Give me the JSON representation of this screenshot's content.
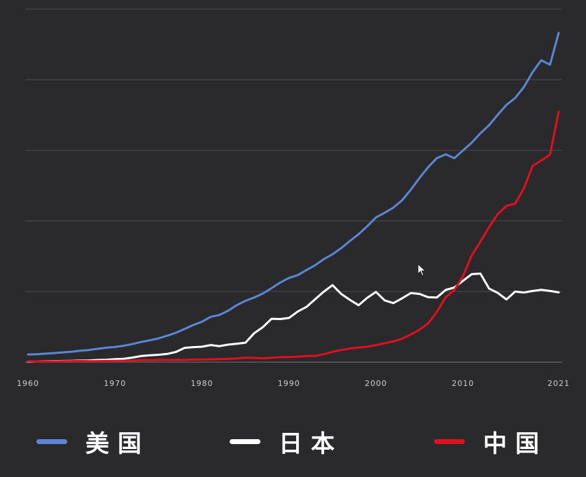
{
  "chart_data": {
    "type": "line",
    "title": "",
    "xlabel": "",
    "ylabel": "",
    "xlim": [
      1960,
      2021
    ],
    "ylim": [
      0,
      25
    ],
    "y_grid_ticks": [
      0,
      5,
      10,
      15,
      20,
      25
    ],
    "x_tick_labels": [
      "1960",
      "1970",
      "1980",
      "1990",
      "2000",
      "2010",
      "2021"
    ],
    "x_tick_values": [
      1960,
      1970,
      1980,
      1990,
      2000,
      2010,
      2021
    ],
    "grid": true,
    "legend_position": "bottom",
    "series": [
      {
        "name": "美国",
        "color": "#5b86d6",
        "x": [
          1960,
          1961,
          1962,
          1963,
          1964,
          1965,
          1966,
          1967,
          1968,
          1969,
          1970,
          1971,
          1972,
          1973,
          1974,
          1975,
          1976,
          1977,
          1978,
          1979,
          1980,
          1981,
          1982,
          1983,
          1984,
          1985,
          1986,
          1987,
          1988,
          1989,
          1990,
          1991,
          1992,
          1993,
          1994,
          1995,
          1996,
          1997,
          1998,
          1999,
          2000,
          2001,
          2002,
          2003,
          2004,
          2005,
          2006,
          2007,
          2008,
          2009,
          2010,
          2011,
          2012,
          2013,
          2014,
          2015,
          2016,
          2017,
          2018,
          2019,
          2020,
          2021
        ],
        "values": [
          0.54,
          0.56,
          0.6,
          0.64,
          0.69,
          0.74,
          0.81,
          0.86,
          0.94,
          1.02,
          1.07,
          1.16,
          1.28,
          1.43,
          1.55,
          1.68,
          1.87,
          2.08,
          2.35,
          2.63,
          2.86,
          3.21,
          3.34,
          3.64,
          4.04,
          4.34,
          4.58,
          4.86,
          5.24,
          5.64,
          5.96,
          6.16,
          6.52,
          6.86,
          7.29,
          7.64,
          8.07,
          8.58,
          9.06,
          9.63,
          10.25,
          10.58,
          10.94,
          11.46,
          12.21,
          13.04,
          13.81,
          14.45,
          14.71,
          14.45,
          14.99,
          15.54,
          16.2,
          16.78,
          17.52,
          18.22,
          18.71,
          19.48,
          20.53,
          21.38,
          21.06,
          23.32
        ]
      },
      {
        "name": "日本",
        "color": "#ffffff",
        "x": [
          1960,
          1961,
          1962,
          1963,
          1964,
          1965,
          1966,
          1967,
          1968,
          1969,
          1970,
          1971,
          1972,
          1973,
          1974,
          1975,
          1976,
          1977,
          1978,
          1979,
          1980,
          1981,
          1982,
          1983,
          1984,
          1985,
          1986,
          1987,
          1988,
          1989,
          1990,
          1991,
          1992,
          1993,
          1994,
          1995,
          1996,
          1997,
          1998,
          1999,
          2000,
          2001,
          2002,
          2003,
          2004,
          2005,
          2006,
          2007,
          2008,
          2009,
          2010,
          2011,
          2012,
          2013,
          2014,
          2015,
          2016,
          2017,
          2018,
          2019,
          2020,
          2021
        ],
        "values": [
          0.04,
          0.05,
          0.06,
          0.07,
          0.08,
          0.09,
          0.11,
          0.12,
          0.15,
          0.17,
          0.21,
          0.24,
          0.32,
          0.43,
          0.48,
          0.52,
          0.58,
          0.72,
          1.01,
          1.06,
          1.09,
          1.21,
          1.13,
          1.24,
          1.3,
          1.38,
          2.05,
          2.48,
          3.07,
          3.05,
          3.13,
          3.58,
          3.91,
          4.45,
          4.99,
          5.45,
          4.83,
          4.41,
          4.03,
          4.56,
          4.97,
          4.37,
          4.18,
          4.52,
          4.89,
          4.83,
          4.6,
          4.58,
          5.11,
          5.29,
          5.76,
          6.23,
          6.27,
          5.21,
          4.9,
          4.44,
          5.0,
          4.93,
          5.04,
          5.12,
          5.04,
          4.94
        ]
      },
      {
        "name": "中国",
        "color": "#e0101e",
        "x": [
          1960,
          1961,
          1962,
          1963,
          1964,
          1965,
          1966,
          1967,
          1968,
          1969,
          1970,
          1971,
          1972,
          1973,
          1974,
          1975,
          1976,
          1977,
          1978,
          1979,
          1980,
          1981,
          1982,
          1983,
          1984,
          1985,
          1986,
          1987,
          1988,
          1989,
          1990,
          1991,
          1992,
          1993,
          1994,
          1995,
          1996,
          1997,
          1998,
          1999,
          2000,
          2001,
          2002,
          2003,
          2004,
          2005,
          2006,
          2007,
          2008,
          2009,
          2010,
          2011,
          2012,
          2013,
          2014,
          2015,
          2016,
          2017,
          2018,
          2019,
          2020,
          2021
        ],
        "values": [
          0.06,
          0.05,
          0.05,
          0.05,
          0.06,
          0.07,
          0.08,
          0.07,
          0.07,
          0.08,
          0.09,
          0.1,
          0.11,
          0.14,
          0.14,
          0.16,
          0.15,
          0.17,
          0.15,
          0.18,
          0.19,
          0.2,
          0.21,
          0.23,
          0.26,
          0.31,
          0.3,
          0.27,
          0.31,
          0.35,
          0.36,
          0.38,
          0.43,
          0.44,
          0.56,
          0.73,
          0.86,
          0.96,
          1.03,
          1.09,
          1.21,
          1.34,
          1.47,
          1.66,
          1.96,
          2.29,
          2.75,
          3.55,
          4.59,
          5.1,
          6.09,
          7.55,
          8.53,
          9.57,
          10.48,
          11.06,
          11.23,
          12.31,
          13.89,
          14.28,
          14.69,
          17.73
        ]
      }
    ]
  }
}
